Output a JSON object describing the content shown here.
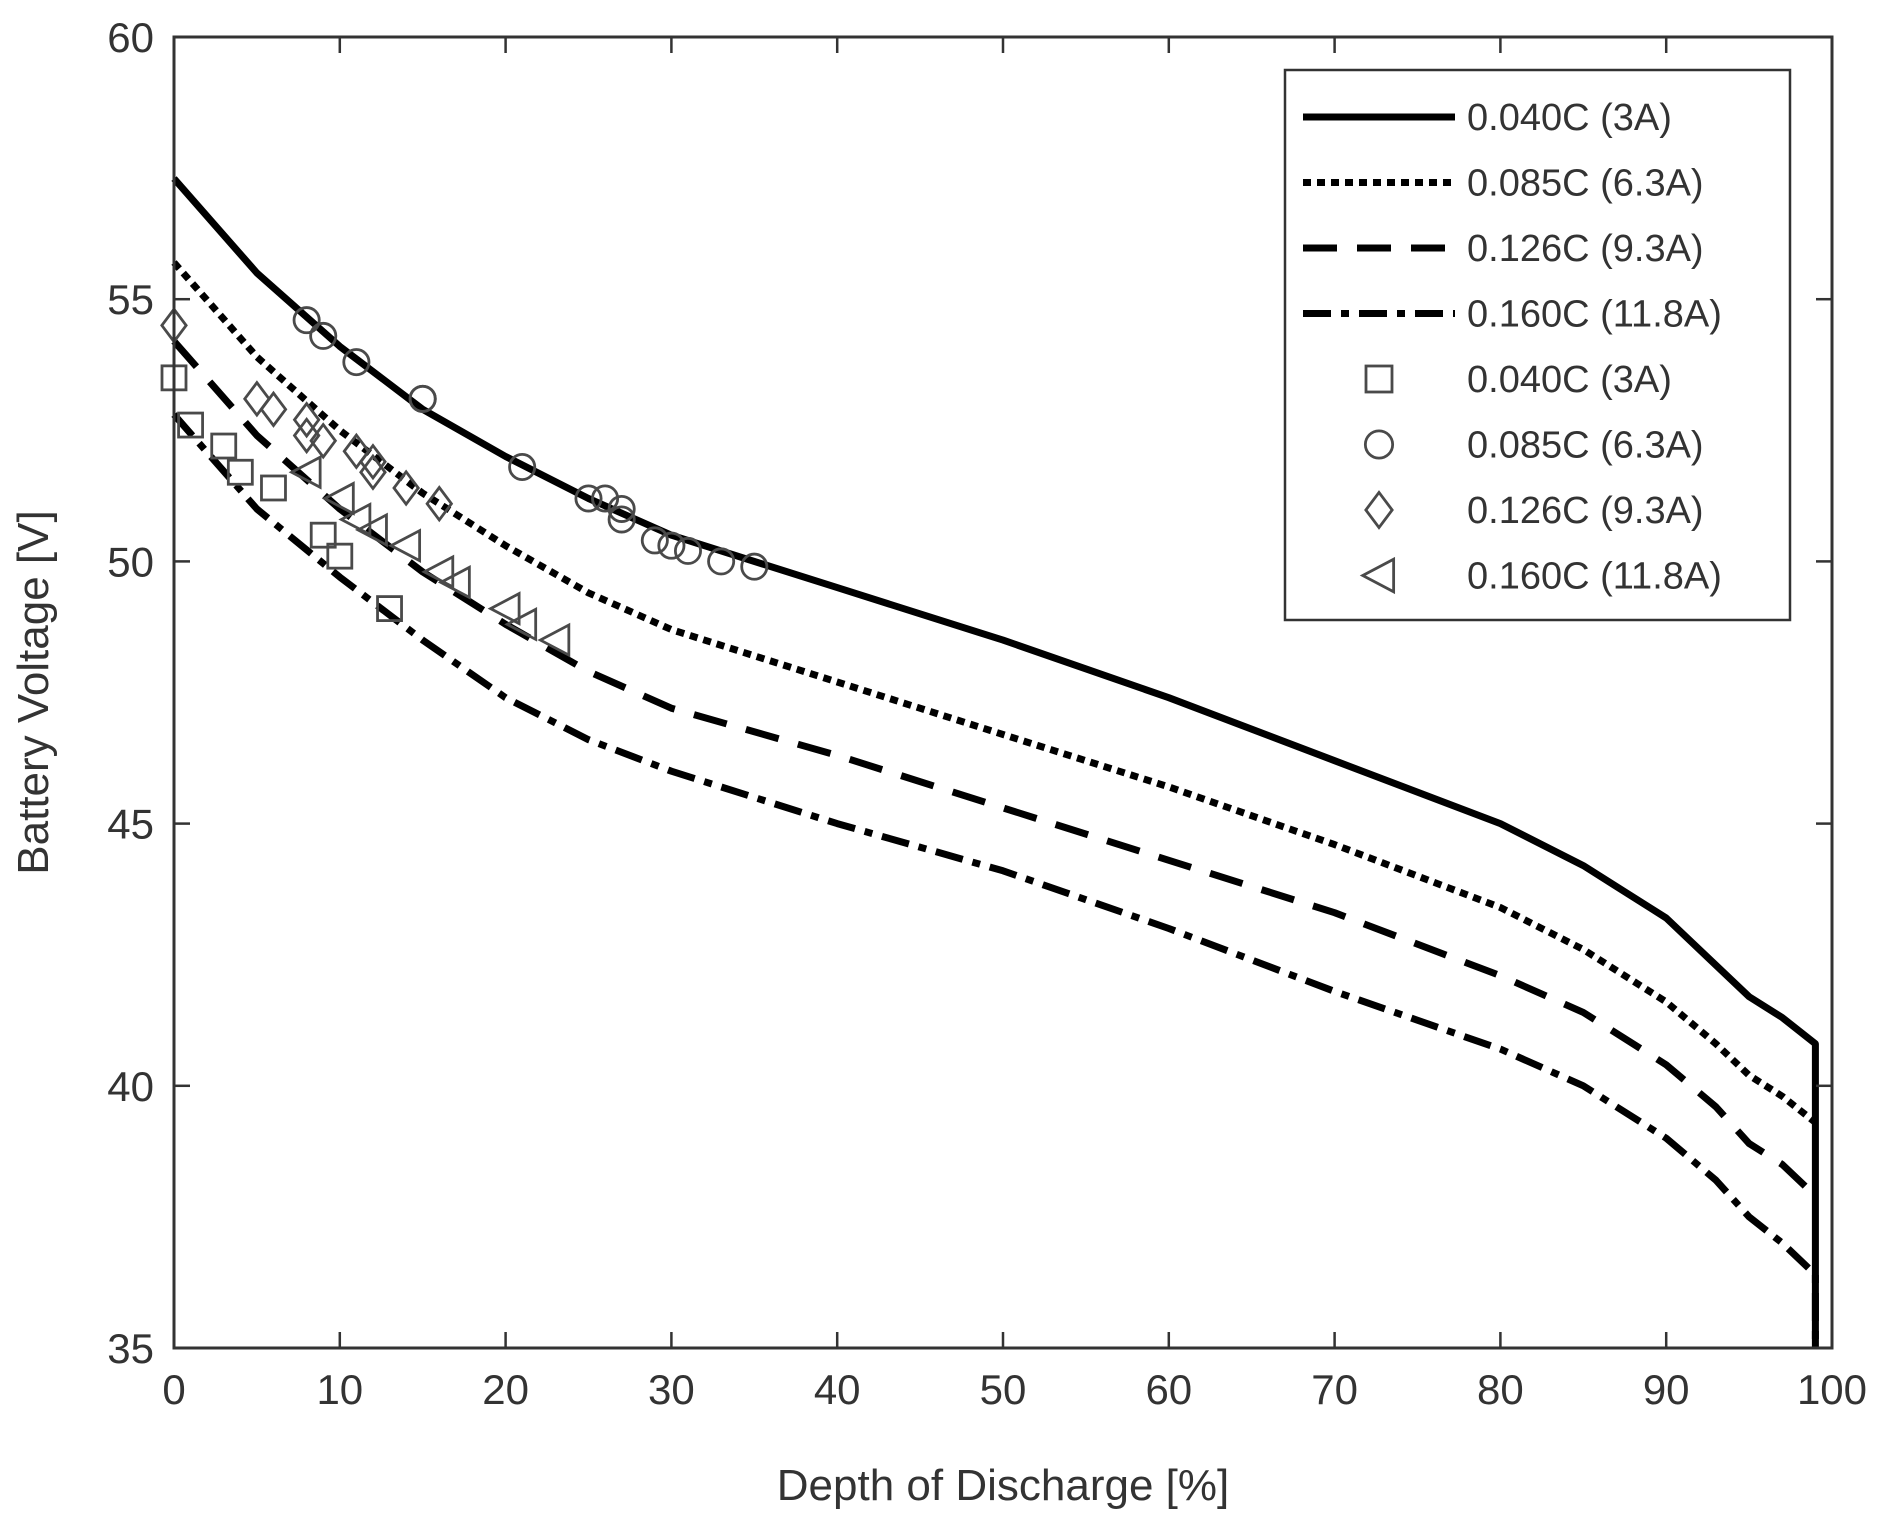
{
  "chart_data": {
    "type": "line",
    "title": "",
    "xlabel": "Depth of Discharge [%]",
    "ylabel": "Battery Voltage [V]",
    "xlim": [
      0,
      100
    ],
    "ylim": [
      35,
      60
    ],
    "xticks": [
      "0",
      "10",
      "20",
      "30",
      "40",
      "50",
      "60",
      "70",
      "80",
      "90",
      "100"
    ],
    "yticks": [
      "35",
      "40",
      "45",
      "50",
      "55",
      "60"
    ],
    "grid": false,
    "legend_position": "top-right",
    "line_series": [
      {
        "name": "0.040C (3A)",
        "dash": "solid",
        "x": [
          0,
          5,
          10,
          15,
          20,
          25,
          30,
          40,
          50,
          60,
          70,
          80,
          85,
          90,
          93,
          95,
          97,
          99,
          99,
          99
        ],
        "y": [
          57.3,
          55.5,
          54.1,
          52.9,
          52.0,
          51.2,
          50.5,
          49.5,
          48.5,
          47.4,
          46.2,
          45.0,
          44.2,
          43.2,
          42.3,
          41.7,
          41.3,
          40.8,
          38.0,
          35.0
        ]
      },
      {
        "name": "0.085C (6.3A)",
        "dash": "dotted",
        "x": [
          0,
          5,
          10,
          15,
          20,
          25,
          30,
          40,
          50,
          60,
          70,
          80,
          85,
          90,
          93,
          95,
          97,
          99
        ],
        "y": [
          55.7,
          53.9,
          52.5,
          51.3,
          50.3,
          49.4,
          48.7,
          47.7,
          46.7,
          45.7,
          44.6,
          43.4,
          42.6,
          41.6,
          40.8,
          40.2,
          39.8,
          39.3
        ]
      },
      {
        "name": "0.126C (9.3A)",
        "dash": "dashed",
        "x": [
          0,
          5,
          10,
          15,
          20,
          25,
          30,
          40,
          50,
          60,
          70,
          80,
          85,
          90,
          93,
          95,
          97,
          99
        ],
        "y": [
          54.2,
          52.4,
          51.0,
          49.8,
          48.8,
          47.9,
          47.2,
          46.3,
          45.3,
          44.3,
          43.3,
          42.1,
          41.4,
          40.4,
          39.6,
          38.9,
          38.5,
          37.9
        ]
      },
      {
        "name": "0.160C (11.8A)",
        "dash": "dash-dot",
        "x": [
          0,
          5,
          10,
          15,
          20,
          25,
          30,
          40,
          50,
          60,
          70,
          80,
          85,
          90,
          93,
          95,
          97,
          99,
          99
        ],
        "y": [
          52.8,
          51.0,
          49.7,
          48.5,
          47.4,
          46.6,
          46.0,
          45.0,
          44.1,
          43.0,
          41.8,
          40.7,
          40.0,
          39.0,
          38.2,
          37.5,
          37.0,
          36.4,
          35.0
        ]
      }
    ],
    "marker_series": [
      {
        "name": "0.040C (3A)",
        "marker": "square",
        "x": [
          0,
          1,
          3,
          4,
          6,
          9,
          10,
          13
        ],
        "y": [
          53.5,
          52.6,
          52.2,
          51.7,
          51.4,
          50.5,
          50.1,
          49.1
        ]
      },
      {
        "name": "0.085C (6.3A)",
        "marker": "circle",
        "x": [
          8,
          9,
          11,
          15,
          15,
          21,
          25,
          26,
          27,
          27,
          29,
          30,
          31,
          33,
          35
        ],
        "y": [
          54.6,
          54.3,
          53.8,
          53.1,
          53.1,
          51.8,
          51.2,
          51.2,
          51.0,
          50.8,
          50.4,
          50.3,
          50.2,
          50.0,
          49.9
        ]
      },
      {
        "name": "0.126C (9.3A)",
        "marker": "diamond",
        "x": [
          0,
          5,
          6,
          8,
          8,
          9,
          11,
          12,
          12,
          14,
          16
        ],
        "y": [
          54.5,
          53.1,
          52.9,
          52.7,
          52.4,
          52.3,
          52.1,
          51.9,
          51.7,
          51.4,
          51.1
        ]
      },
      {
        "name": "0.160C (11.8A)",
        "marker": "triangle-left",
        "x": [
          8,
          10,
          11,
          12,
          14,
          16,
          17,
          20,
          21,
          23
        ],
        "y": [
          51.7,
          51.2,
          50.8,
          50.6,
          50.3,
          49.8,
          49.6,
          49.1,
          48.8,
          48.5
        ]
      }
    ]
  }
}
